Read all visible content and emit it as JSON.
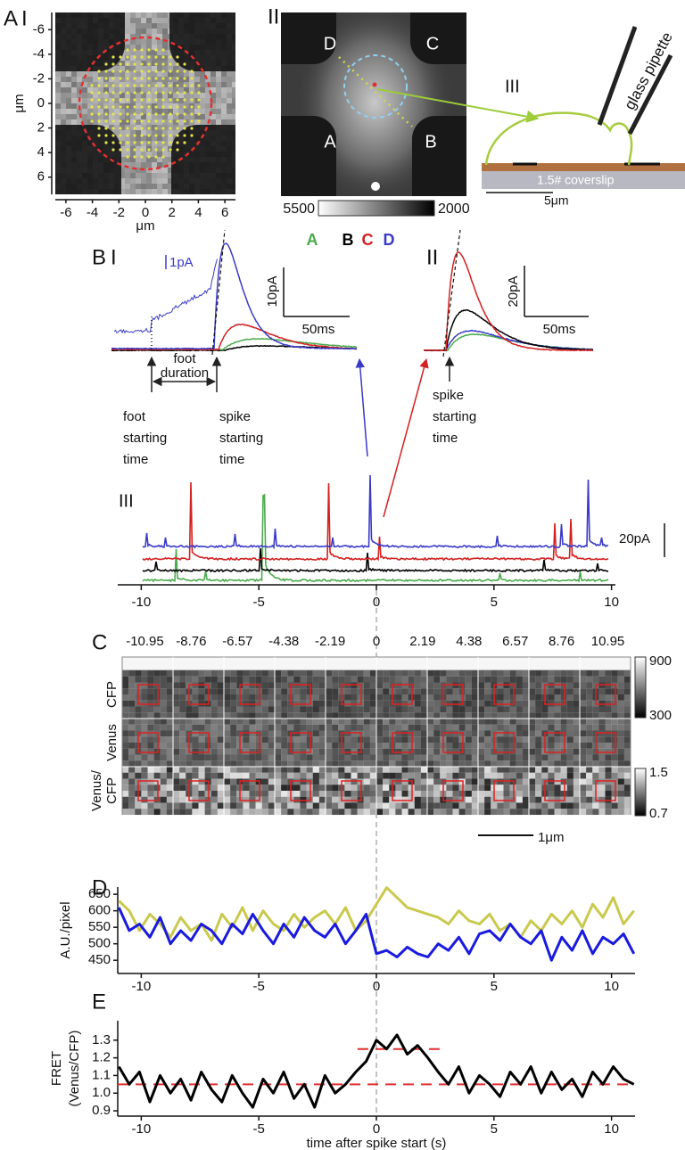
{
  "figure": {
    "panel_a": {
      "label": "A",
      "i": {
        "label": "I",
        "xlim": [
          -6.8,
          6.8
        ],
        "ylim": [
          -7.4,
          7.4
        ],
        "y_inverted": true,
        "xticks": [
          -6,
          -4,
          -2,
          0,
          2,
          4,
          6
        ],
        "yticks": [
          -6,
          -4,
          -2,
          0,
          2,
          4,
          6
        ],
        "xlabel": "μm",
        "ylabel": "μm"
      },
      "ii": {
        "label": "II",
        "quadrant_labels": [
          "D",
          "C",
          "A",
          "B"
        ],
        "colorbar": [
          5500,
          2000
        ]
      },
      "iii": {
        "label": "III",
        "pipette": "glass pipette",
        "coverslip": "1.5# coverslip",
        "scale": "5μm"
      }
    },
    "panel_b": {
      "label": "B",
      "legend": [
        {
          "name": "A",
          "color": "#4caa4c"
        },
        {
          "name": "B",
          "color": "#000000"
        },
        {
          "name": "C",
          "color": "#d42020"
        },
        {
          "name": "D",
          "color": "#3a3ac8"
        }
      ],
      "i": {
        "label": "I",
        "inset_scale": "1pA",
        "y_scale": "10pA",
        "x_scale": "50ms",
        "foot_duration": [
          "foot",
          "duration"
        ],
        "foot_start": [
          "foot",
          "starting",
          "time"
        ],
        "spike_start": [
          "spike",
          "starting",
          "time"
        ]
      },
      "ii": {
        "label": "II",
        "y_scale": "20pA",
        "x_scale": "50ms",
        "spike_start": [
          "spike",
          "starting",
          "time"
        ]
      },
      "iii": {
        "label": "III",
        "y_scale": "20pA",
        "xlim": [
          -11,
          11
        ],
        "xticks": [
          -10,
          -5,
          0,
          5,
          10
        ]
      }
    },
    "panel_c": {
      "label": "C",
      "times": [
        -10.95,
        -8.76,
        -6.57,
        -4.38,
        -2.19,
        0,
        2.19,
        4.38,
        6.57,
        8.76,
        10.95
      ],
      "rows": [
        [
          "CFP"
        ],
        [
          "Venus"
        ],
        [
          "Venus/",
          "CFP"
        ]
      ],
      "colorbars": [
        [
          900,
          300
        ],
        [
          1.5,
          0.7
        ]
      ],
      "scale": "1μm"
    }
  },
  "chart_data": [
    {
      "type": "line",
      "label": "D",
      "ylabel": "A.U./pixel",
      "x": [
        -10.95,
        -10.512,
        -10.074,
        -9.636,
        -9.198,
        -8.76,
        -8.322,
        -7.884,
        -7.446,
        -7.008,
        -6.57,
        -6.132,
        -5.694,
        -5.256,
        -4.818,
        -4.38,
        -3.942,
        -3.504,
        -3.066,
        -2.628,
        -2.19,
        -1.752,
        -1.314,
        -0.876,
        -0.438,
        0,
        0.438,
        0.876,
        1.314,
        1.752,
        2.19,
        2.628,
        3.066,
        3.504,
        3.942,
        4.38,
        4.818,
        5.256,
        5.694,
        6.132,
        6.57,
        7.008,
        7.446,
        7.884,
        8.322,
        8.76,
        9.198,
        9.636,
        10.074,
        10.512,
        10.95
      ],
      "series": [
        {
          "color": "#c9c94e",
          "values": [
            630,
            600,
            540,
            590,
            560,
            520,
            580,
            540,
            560,
            510,
            590,
            550,
            610,
            540,
            600,
            560,
            540,
            590,
            550,
            580,
            600,
            560,
            610,
            540,
            570,
            620,
            670,
            640,
            610,
            600,
            590,
            580,
            560,
            600,
            570,
            560,
            590,
            540,
            560,
            520,
            570,
            540,
            590,
            560,
            600,
            550,
            620,
            580,
            640,
            560,
            600
          ]
        },
        {
          "color": "#1a1ae0",
          "values": [
            610,
            540,
            560,
            520,
            580,
            500,
            540,
            510,
            560,
            540,
            500,
            560,
            530,
            590,
            540,
            500,
            560,
            520,
            580,
            540,
            520,
            560,
            500,
            540,
            590,
            470,
            480,
            460,
            490,
            470,
            460,
            500,
            480,
            520,
            470,
            530,
            540,
            510,
            560,
            520,
            500,
            540,
            450,
            520,
            480,
            540,
            470,
            520,
            500,
            530,
            470
          ]
        }
      ],
      "xlim": [
        -11,
        11
      ],
      "ylim": [
        410,
        672
      ],
      "xticks": [
        -10,
        -5,
        0,
        5,
        10
      ],
      "yticks": [
        450,
        500,
        550,
        600,
        650
      ]
    },
    {
      "type": "line",
      "label": "E",
      "ylabel": [
        "FRET",
        "(Venus/CFP)"
      ],
      "xlabel": "time after spike start (s)",
      "x": [
        -10.95,
        -10.512,
        -10.074,
        -9.636,
        -9.198,
        -8.76,
        -8.322,
        -7.884,
        -7.446,
        -7.008,
        -6.57,
        -6.132,
        -5.694,
        -5.256,
        -4.818,
        -4.38,
        -3.942,
        -3.504,
        -3.066,
        -2.628,
        -2.19,
        -1.752,
        -1.314,
        -0.876,
        -0.438,
        0,
        0.438,
        0.876,
        1.314,
        1.752,
        2.19,
        2.628,
        3.066,
        3.504,
        3.942,
        4.38,
        4.818,
        5.256,
        5.694,
        6.132,
        6.57,
        7.008,
        7.446,
        7.884,
        8.322,
        8.76,
        9.198,
        9.636,
        10.074,
        10.512,
        10.95
      ],
      "series": [
        {
          "color": "#000000",
          "values": [
            1.15,
            1.05,
            1.12,
            0.95,
            1.1,
            1.0,
            1.08,
            0.96,
            1.12,
            1.02,
            0.95,
            1.1,
            1.0,
            0.92,
            1.08,
            1.0,
            1.12,
            0.97,
            1.05,
            0.92,
            1.1,
            1.0,
            1.05,
            1.12,
            1.18,
            1.3,
            1.25,
            1.33,
            1.22,
            1.27,
            1.2,
            1.12,
            1.05,
            1.15,
            1.0,
            1.1,
            1.05,
            0.98,
            1.12,
            1.05,
            1.15,
            1.0,
            1.12,
            1.02,
            1.08,
            0.98,
            1.12,
            1.05,
            1.15,
            1.08,
            1.05
          ]
        }
      ],
      "reference_lines": [
        {
          "value": 1.05,
          "x": [
            -11,
            11
          ]
        },
        {
          "value": 1.25,
          "x": [
            -0.8,
            2.8
          ]
        }
      ],
      "reference_color": "#e03030",
      "xlim": [
        -11,
        11
      ],
      "ylim": [
        0.87,
        1.41
      ],
      "xticks": [
        -10,
        -5,
        0,
        5,
        10
      ],
      "yticks": [
        0.9,
        {
          "value": 1,
          "label": "1.0"
        },
        1.1,
        1.2,
        1.3
      ]
    }
  ]
}
